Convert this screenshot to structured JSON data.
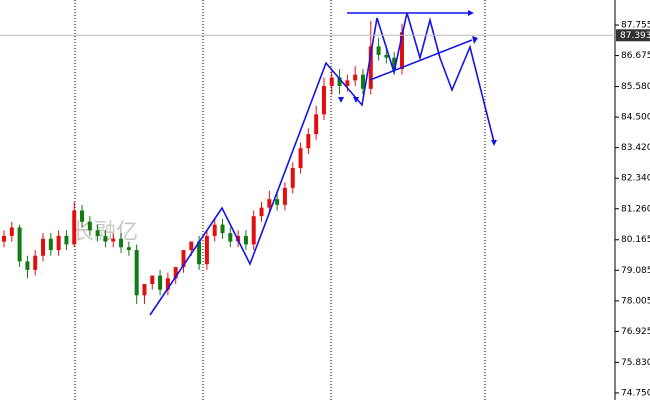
{
  "chart_data": {
    "type": "candlestick",
    "watermark": "长融亿",
    "up_color": "#e01010",
    "down_color": "#117a11",
    "candles": {
      "open": [
        80.1,
        80.3,
        80.6,
        79.4,
        79.1,
        79.6,
        80.2,
        79.8,
        80.3,
        80.0,
        81.2,
        80.8,
        80.5,
        80.3,
        80.1,
        80.2,
        79.9,
        79.8,
        78.2,
        78.6,
        78.9,
        78.4,
        78.8,
        79.2,
        79.8,
        80.1,
        79.3,
        80.3,
        80.7,
        80.4,
        80.1,
        80.3,
        80.0,
        81.0,
        81.3,
        81.6,
        81.4,
        82.0,
        82.7,
        83.4,
        83.9,
        84.6,
        85.6,
        85.9,
        85.6,
        85.8,
        86.0,
        85.5,
        87.0,
        86.7,
        86.6,
        86.2
      ],
      "high": [
        80.5,
        80.8,
        80.7,
        79.6,
        79.8,
        80.4,
        80.4,
        80.5,
        80.5,
        81.5,
        81.4,
        81.0,
        80.7,
        80.5,
        80.4,
        80.4,
        80.1,
        80.0,
        78.4,
        78.8,
        79.1,
        79.0,
        79.0,
        79.4,
        80.0,
        80.3,
        80.5,
        80.9,
        80.9,
        80.6,
        80.5,
        80.5,
        81.2,
        81.5,
        81.9,
        81.8,
        82.2,
        82.9,
        83.6,
        84.1,
        84.9,
        85.9,
        86.2,
        86.2,
        86.0,
        86.3,
        86.2,
        87.9,
        87.3,
        87.0,
        86.8,
        87.8
      ],
      "low": [
        79.9,
        80.1,
        79.2,
        78.8,
        78.9,
        79.4,
        79.6,
        79.6,
        79.8,
        79.9,
        80.6,
        80.3,
        80.1,
        79.9,
        79.9,
        79.7,
        79.6,
        77.9,
        77.9,
        78.4,
        78.2,
        78.2,
        78.6,
        79.0,
        79.6,
        79.1,
        79.1,
        80.1,
        80.2,
        79.9,
        79.9,
        79.8,
        79.8,
        80.8,
        81.1,
        81.2,
        81.2,
        81.8,
        82.5,
        83.2,
        83.7,
        84.4,
        85.3,
        85.3,
        85.4,
        85.6,
        85.3,
        85.3,
        86.5,
        86.4,
        86.0,
        86.0
      ],
      "close": [
        80.3,
        80.6,
        79.4,
        79.1,
        79.6,
        80.2,
        79.8,
        80.3,
        80.0,
        81.2,
        80.8,
        80.5,
        80.3,
        80.1,
        80.2,
        79.9,
        79.8,
        78.2,
        78.6,
        78.9,
        78.4,
        78.8,
        79.2,
        79.8,
        80.1,
        79.3,
        80.3,
        80.7,
        80.4,
        80.1,
        80.3,
        80.0,
        81.0,
        81.3,
        81.6,
        81.4,
        82.0,
        82.7,
        83.4,
        83.9,
        84.6,
        85.6,
        85.9,
        85.6,
        85.8,
        86.0,
        85.5,
        87.0,
        86.7,
        86.6,
        86.2,
        87.5
      ]
    },
    "current_price": 87.393,
    "ylim": [
      74.5,
      88.64
    ],
    "yticks": [
      {
        "value": 87.755,
        "label": "87.755"
      },
      {
        "value": 86.675,
        "label": "86.675"
      },
      {
        "value": 85.58,
        "label": "85.580"
      },
      {
        "value": 84.5,
        "label": "84.500"
      },
      {
        "value": 83.42,
        "label": "83.420"
      },
      {
        "value": 82.34,
        "label": "82.340"
      },
      {
        "value": 81.26,
        "label": "81.260"
      },
      {
        "value": 80.165,
        "label": "80.165"
      },
      {
        "value": 79.085,
        "label": "79.085"
      },
      {
        "value": 78.005,
        "label": "78.005"
      },
      {
        "value": 76.925,
        "label": "76.925"
      },
      {
        "value": 75.83,
        "label": "75.830"
      },
      {
        "value": 74.75,
        "label": "74.750"
      }
    ]
  }
}
